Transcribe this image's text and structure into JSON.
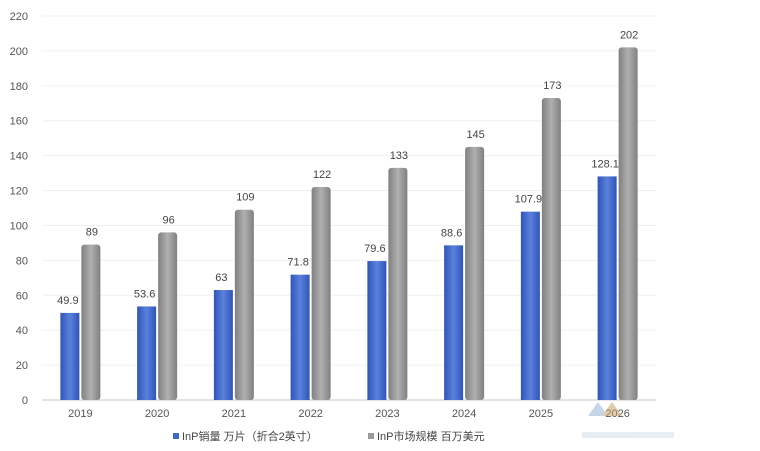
{
  "chart_data": {
    "type": "bar",
    "categories": [
      "2019",
      "2020",
      "2021",
      "2022",
      "2023",
      "2024",
      "2025",
      "2026"
    ],
    "series": [
      {
        "name": "InP销量  万片（折合2英寸）",
        "color": "#3f67c9",
        "values": [
          49.9,
          53.6,
          63,
          71.8,
          79.6,
          88.6,
          107.9,
          128.1
        ],
        "labels": [
          "49.9",
          "53.6",
          "63",
          "71.8",
          "79.6",
          "88.6",
          "107.9",
          "128.1"
        ]
      },
      {
        "name": "InP市场规模  百万美元",
        "color": "#9a9a9a",
        "values": [
          89,
          96,
          109,
          122,
          133,
          145,
          173,
          202
        ],
        "labels": [
          "89",
          "96",
          "109",
          "122",
          "133",
          "145",
          "173",
          "202"
        ]
      }
    ],
    "ylim": [
      0,
      220
    ],
    "yticks": [
      "0",
      "20",
      "40",
      "60",
      "80",
      "100",
      "120",
      "140",
      "160",
      "180",
      "200",
      "220"
    ],
    "grid": true,
    "legend_position": "bottom"
  }
}
